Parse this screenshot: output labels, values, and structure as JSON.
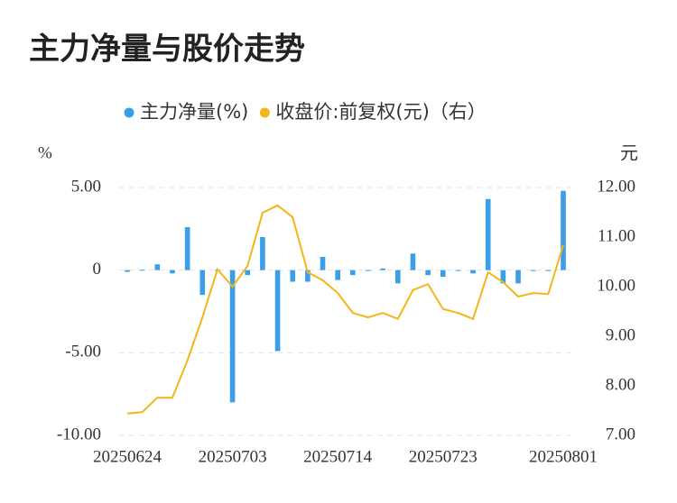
{
  "chart_data": {
    "type": "bar_line",
    "title": "主力净量与股价走势",
    "y_label": "%",
    "y2_label": "元",
    "categories": [
      "20250624",
      null,
      null,
      null,
      null,
      null,
      null,
      "20250703",
      null,
      null,
      null,
      null,
      null,
      null,
      "20250714",
      null,
      null,
      null,
      null,
      null,
      null,
      "20250723",
      null,
      null,
      null,
      null,
      null,
      null,
      null,
      "20250801"
    ],
    "series": [
      {
        "name": "主力净量(%)",
        "type": "bar",
        "color": "#3a9ee8",
        "values": [
          -0.1,
          0.02,
          0.35,
          -0.2,
          2.6,
          -1.5,
          0.02,
          -8.0,
          -0.3,
          2.0,
          -4.9,
          -0.7,
          -0.7,
          0.8,
          -0.6,
          -0.3,
          -0.05,
          0.1,
          -0.8,
          1.0,
          -0.3,
          -0.4,
          -0.05,
          -0.2,
          4.3,
          -0.8,
          -0.8,
          -0.05,
          -0.05,
          4.8
        ]
      },
      {
        "name": "收盘价:前复权(元)（右）",
        "type": "line",
        "axis": "y2",
        "color": "#f2b619",
        "values": [
          7.44,
          7.47,
          7.76,
          7.76,
          8.51,
          9.38,
          10.35,
          10.0,
          10.42,
          11.49,
          11.64,
          11.4,
          10.29,
          10.13,
          9.87,
          9.47,
          9.38,
          9.47,
          9.35,
          9.93,
          10.05,
          9.55,
          9.47,
          9.35,
          10.29,
          10.09,
          9.8,
          9.87,
          9.85,
          10.84
        ]
      }
    ],
    "ylim": [
      -10,
      5
    ],
    "yticks": [
      {
        "value": -10,
        "label": "-10.00"
      },
      {
        "value": -5,
        "label": "-5.00"
      },
      0,
      {
        "value": 5,
        "label": "5.00"
      }
    ],
    "y2lim": [
      7,
      12
    ],
    "y2ticks": [
      {
        "value": 7,
        "label": "7.00"
      },
      {
        "value": 8,
        "label": "8.00"
      },
      {
        "value": 9,
        "label": "9.00"
      },
      {
        "value": 10,
        "label": "10.00"
      },
      {
        "value": 11,
        "label": "11.00"
      },
      {
        "value": 12,
        "label": "12.00"
      }
    ],
    "grid": true,
    "legend": "top"
  }
}
